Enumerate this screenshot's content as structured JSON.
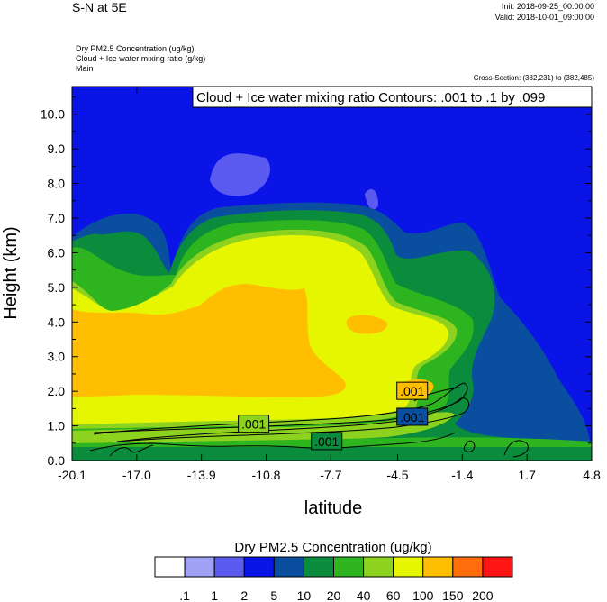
{
  "header": {
    "title": "S-N at 5E",
    "init": "Init: 2018-09-25_00:00:00",
    "valid": "Valid: 2018-10-01_09:00:00",
    "field1": "Dry PM2.5 Concentration   (ug/kg)",
    "field2": "Cloud + Ice water mixing ratio   (g/kg)",
    "field3": "Main",
    "cross_section": "Cross-Section: (382,231) to (382,485)",
    "contour_info": "Cloud + Ice water mixing ratio Contours: .001 to .1 by .099"
  },
  "chart_data": {
    "type": "heatmap",
    "xlabel": "latitude",
    "ylabel": "Height (km)",
    "xlim": [
      -20.1,
      4.8
    ],
    "ylim": [
      0.0,
      10.8
    ],
    "xticks": [
      -20.1,
      -17.0,
      -13.9,
      -10.8,
      -7.7,
      -4.5,
      -1.4,
      1.7,
      4.8
    ],
    "xtick_labels": [
      "-20.1",
      "-17.0",
      "-13.9",
      "-10.8",
      "-7.7",
      "-4.5",
      "-1.4",
      "1.7",
      "4.8"
    ],
    "yticks": [
      0.0,
      1.0,
      2.0,
      3.0,
      4.0,
      5.0,
      6.0,
      7.0,
      8.0,
      9.0,
      10.0
    ],
    "ytick_labels": [
      "0.0",
      "1.0",
      "2.0",
      "3.0",
      "4.0",
      "5.0",
      "6.0",
      "7.0",
      "8.0",
      "9.0",
      "10.0"
    ],
    "colorbar": {
      "title": "Dry PM2.5 Concentration  (ug/kg)",
      "levels": [
        ".1",
        "1",
        "2",
        "5",
        "10",
        "20",
        "40",
        "60",
        "100",
        "150",
        "200"
      ],
      "colors": [
        "#ffffff",
        "#a0a0f5",
        "#5a5af0",
        "#0a14e6",
        "#0a4ea0",
        "#0a8c3c",
        "#2db41e",
        "#8cd21e",
        "#e6f500",
        "#ffbe00",
        "#ff6e0a",
        "#ff1414"
      ]
    },
    "contour_labels": [
      {
        "text": ".001",
        "x": -11.4,
        "y": 1.05
      },
      {
        "text": ".001",
        "x": -7.9,
        "y": 0.55
      },
      {
        "text": ".001",
        "x": -3.8,
        "y": 2.0
      },
      {
        "text": ".001",
        "x": -3.8,
        "y": 1.25
      }
    ],
    "colors": {
      "background": "#0a14e6",
      "level_5": "#0a4ea0",
      "level_10": "#0a8c3c",
      "level_20": "#2db41e",
      "level_40": "#8cd21e",
      "level_60": "#e6f500",
      "level_100": "#ffbe00",
      "level_1": "#5a5af0",
      "contour": "#000000"
    }
  }
}
